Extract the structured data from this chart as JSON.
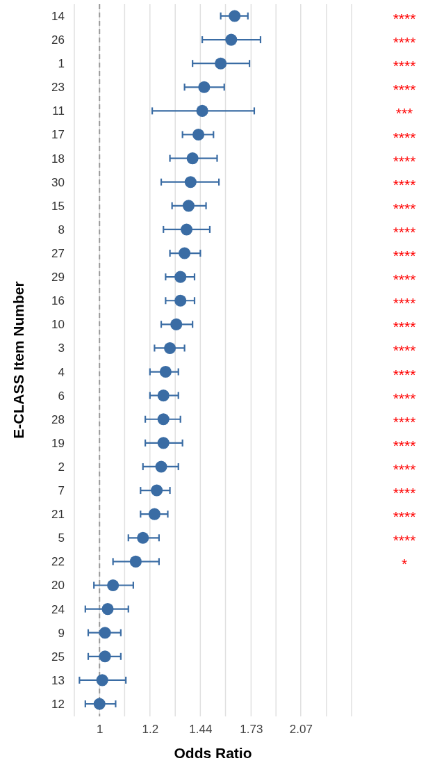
{
  "chart_data": {
    "type": "scatter",
    "orientation": "horizontal",
    "xlabel": "Odds Ratio",
    "ylabel": "E-CLASS Item Number",
    "categories": [
      "14",
      "26",
      "1",
      "23",
      "11",
      "17",
      "18",
      "30",
      "15",
      "8",
      "27",
      "29",
      "16",
      "10",
      "3",
      "4",
      "6",
      "28",
      "19",
      "2",
      "7",
      "21",
      "5",
      "22",
      "20",
      "24",
      "9",
      "25",
      "13",
      "12"
    ],
    "values": [
      1.63,
      1.61,
      1.55,
      1.46,
      1.45,
      1.43,
      1.4,
      1.39,
      1.38,
      1.37,
      1.36,
      1.34,
      1.34,
      1.32,
      1.29,
      1.27,
      1.26,
      1.26,
      1.26,
      1.25,
      1.23,
      1.22,
      1.17,
      1.14,
      1.05,
      1.03,
      1.02,
      1.02,
      1.01,
      1.0
    ],
    "errors": [
      [
        1.55,
        1.71
      ],
      [
        1.45,
        1.79
      ],
      [
        1.4,
        1.72
      ],
      [
        1.36,
        1.57
      ],
      [
        1.21,
        1.75
      ],
      [
        1.35,
        1.51
      ],
      [
        1.29,
        1.53
      ],
      [
        1.25,
        1.54
      ],
      [
        1.3,
        1.47
      ],
      [
        1.26,
        1.49
      ],
      [
        1.29,
        1.44
      ],
      [
        1.27,
        1.41
      ],
      [
        1.27,
        1.41
      ],
      [
        1.25,
        1.4
      ],
      [
        1.22,
        1.36
      ],
      [
        1.2,
        1.33
      ],
      [
        1.2,
        1.33
      ],
      [
        1.18,
        1.34
      ],
      [
        1.18,
        1.35
      ],
      [
        1.17,
        1.33
      ],
      [
        1.16,
        1.29
      ],
      [
        1.16,
        1.28
      ],
      [
        1.11,
        1.24
      ],
      [
        1.05,
        1.24
      ],
      [
        0.98,
        1.13
      ],
      [
        0.95,
        1.11
      ],
      [
        0.96,
        1.08
      ],
      [
        0.96,
        1.08
      ],
      [
        0.93,
        1.1
      ],
      [
        0.95,
        1.06
      ]
    ],
    "color": "#3a6ca4",
    "marker": "circle",
    "log": "x",
    "grid": "x",
    "xlim": [
      0.913,
      2.488
    ],
    "xticks": [
      {
        "value": 0.913,
        "label": null
      },
      1,
      {
        "value": 1.095,
        "label": null
      },
      1.2,
      {
        "value": 1.315,
        "label": null
      },
      1.44,
      {
        "value": 1.577,
        "label": null
      },
      1.73,
      {
        "value": 1.893,
        "label": null
      },
      2.07,
      {
        "value": 2.272,
        "label": null
      },
      {
        "value": 2.488,
        "label": null
      }
    ],
    "ref_lines": [
      {
        "axis": "x",
        "value": 1,
        "color": "#999999",
        "line_style": "dashed"
      }
    ],
    "annotations": [
      "****",
      "****",
      "****",
      "****",
      "***",
      "****",
      "****",
      "****",
      "****",
      "****",
      "****",
      "****",
      "****",
      "****",
      "****",
      "****",
      "****",
      "****",
      "****",
      "****",
      "****",
      "****",
      "****",
      "*"
    ]
  }
}
